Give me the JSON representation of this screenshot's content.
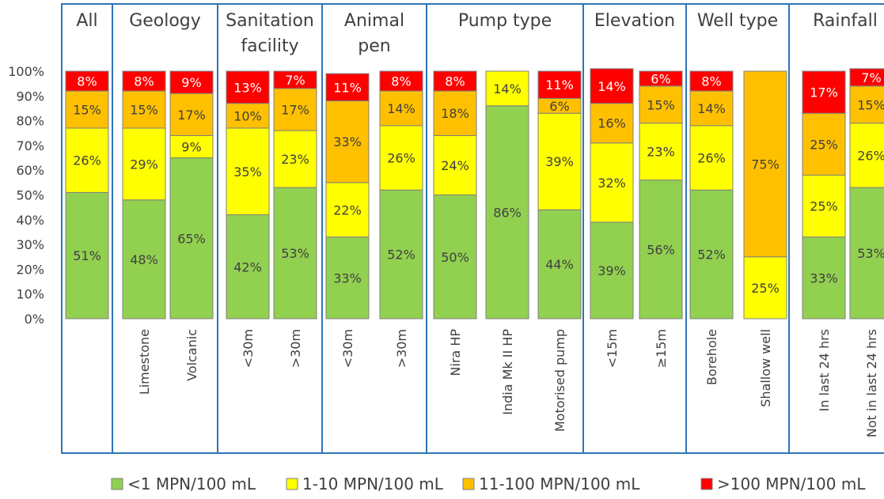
{
  "chart_data": {
    "type": "bar",
    "stacked": true,
    "normalized_percent": true,
    "ylim": [
      0,
      100
    ],
    "yticks": [
      "0%",
      "10%",
      "20%",
      "30%",
      "40%",
      "50%",
      "60%",
      "70%",
      "80%",
      "90%",
      "100%"
    ],
    "grid": false,
    "legend_position": "bottom",
    "series": [
      {
        "name": "<1 MPN/100 mL",
        "color": "#92D050"
      },
      {
        "name": "1-10 MPN/100 mL",
        "color": "#FFFF00"
      },
      {
        "name": "11-100 MPN/100 mL",
        "color": "#FFC000"
      },
      {
        "name": ">100 MPN/100 mL",
        "color": "#FF0000"
      }
    ],
    "groups": [
      {
        "title": [
          "All"
        ],
        "bars": [
          {
            "category": "",
            "values": [
              51,
              26,
              15,
              8
            ]
          }
        ]
      },
      {
        "title": [
          "Geology"
        ],
        "bars": [
          {
            "category": "Limestone",
            "values": [
              48,
              29,
              15,
              8
            ]
          },
          {
            "category": "Volcanic",
            "values": [
              65,
              9,
              17,
              9
            ]
          }
        ]
      },
      {
        "title": [
          "Sanitation",
          "facility"
        ],
        "bars": [
          {
            "category": "<30m",
            "values": [
              42,
              35,
              10,
              13
            ]
          },
          {
            "category": ">30m",
            "values": [
              53,
              23,
              17,
              7
            ]
          }
        ]
      },
      {
        "title": [
          "Animal",
          "pen"
        ],
        "bars": [
          {
            "category": "<30m",
            "values": [
              33,
              22,
              33,
              11
            ]
          },
          {
            "category": ">30m",
            "values": [
              52,
              26,
              14,
              8
            ]
          }
        ]
      },
      {
        "title": [
          "Pump type"
        ],
        "bars": [
          {
            "category": "Nira HP",
            "values": [
              50,
              24,
              18,
              8
            ]
          },
          {
            "category": "India Mk II HP",
            "values": [
              86,
              14,
              0,
              0
            ]
          },
          {
            "category": "Motorised pump",
            "values": [
              44,
              39,
              6,
              11
            ]
          }
        ]
      },
      {
        "title": [
          "Elevation"
        ],
        "bars": [
          {
            "category": "<15m",
            "values": [
              39,
              32,
              16,
              14
            ]
          },
          {
            "category": "≥15m",
            "values": [
              56,
              23,
              15,
              6
            ]
          }
        ]
      },
      {
        "title": [
          "Well type"
        ],
        "bars": [
          {
            "category": "Borehole",
            "values": [
              52,
              26,
              14,
              8
            ]
          },
          {
            "category": "Shallow well",
            "values": [
              0,
              25,
              75,
              0
            ]
          }
        ]
      },
      {
        "title": [
          "Rainfall"
        ],
        "bars": [
          {
            "category": "In last 24 hrs",
            "values": [
              33,
              25,
              25,
              17
            ]
          },
          {
            "category": "Not in last 24 hrs",
            "values": [
              53,
              26,
              15,
              7
            ]
          }
        ]
      }
    ]
  }
}
